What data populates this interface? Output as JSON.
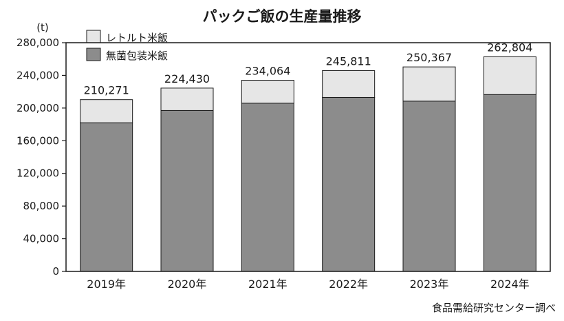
{
  "chart_data": {
    "type": "bar",
    "stacked": true,
    "title": "パックご飯の生産量推移",
    "unit_label": "(t)",
    "source": "食品需給研究センター調べ",
    "categories": [
      "2019年",
      "2020年",
      "2021年",
      "2022年",
      "2023年",
      "2024年"
    ],
    "series": [
      {
        "name": "無菌包装米飯",
        "color": "#8c8c8c",
        "values": [
          182000,
          197000,
          206000,
          213000,
          208500,
          216500
        ]
      },
      {
        "name": "レトルト米飯",
        "color": "#e6e6e6",
        "values": [
          28271,
          27430,
          28064,
          32811,
          41867,
          46304
        ]
      }
    ],
    "totals": [
      210271,
      224430,
      234064,
      245811,
      250367,
      262804
    ],
    "total_labels": [
      "210,271",
      "224,430",
      "234,064",
      "245,811",
      "250,367",
      "262,804"
    ],
    "ylim": [
      0,
      280000
    ],
    "yticks": [
      0,
      40000,
      80000,
      120000,
      160000,
      200000,
      240000,
      280000
    ],
    "ytick_labels": [
      "0",
      "40,000",
      "80,000",
      "120,000",
      "160,000",
      "200,000",
      "240,000",
      "280,000"
    ],
    "legend_position": "top-left",
    "grid": false
  }
}
